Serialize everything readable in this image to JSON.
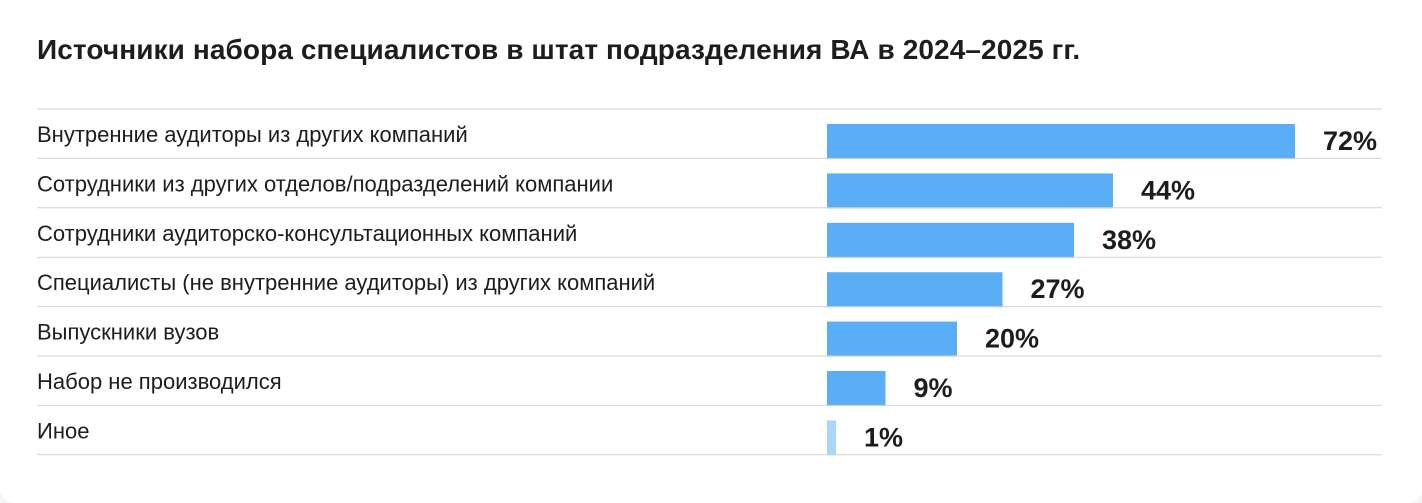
{
  "chart_data": {
    "type": "bar",
    "orientation": "horizontal",
    "title": "Источники набора специалистов в штат подразделения ВА в 2024–2025 гг.",
    "categories": [
      "Внутренние аудиторы из других компаний",
      "Сотрудники из других отделов/подразделений компании",
      "Сотрудники аудиторско-консультационных компаний",
      "Специалисты (не внутренние аудиторы) из других компаний",
      "Выпускники вузов",
      "Набор не производился",
      "Иное"
    ],
    "values": [
      72,
      44,
      38,
      27,
      20,
      9,
      1
    ],
    "value_labels": [
      "72%",
      "44%",
      "38%",
      "27%",
      "20%",
      "9%",
      "1%"
    ],
    "unit": "%",
    "xlim": [
      0,
      72
    ],
    "grid": false,
    "legend": "none",
    "colors": {
      "bar": "#5aaef5",
      "bar_small": "#a8d7fb",
      "divider": "#d2d2d2",
      "text": "#1d1d1f"
    }
  }
}
